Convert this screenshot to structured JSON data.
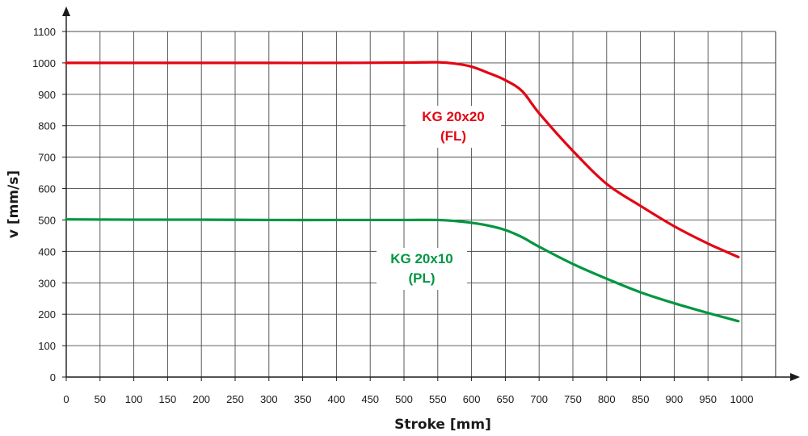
{
  "chart_data": {
    "type": "line",
    "title": "",
    "xlabel": "Stroke [mm]",
    "ylabel": "v [mm/s]",
    "xlim": [
      0,
      1000
    ],
    "ylim": [
      0,
      1100
    ],
    "x_ticks": [
      0,
      50,
      100,
      150,
      200,
      250,
      300,
      350,
      400,
      450,
      500,
      550,
      600,
      650,
      700,
      750,
      800,
      850,
      900,
      950,
      1000
    ],
    "y_ticks": [
      0,
      100,
      200,
      300,
      400,
      500,
      600,
      700,
      800,
      900,
      1000,
      1100
    ],
    "grid": true,
    "series": [
      {
        "name": "KG 20x20 (FL)",
        "label_lines": [
          "KG 20x20",
          "(FL)"
        ],
        "color": "#e30613",
        "x": [
          0,
          100,
          200,
          300,
          400,
          500,
          550,
          575,
          600,
          625,
          650,
          675,
          700,
          750,
          800,
          850,
          900,
          950,
          995
        ],
        "y": [
          1000,
          1000,
          1000,
          1000,
          1000,
          1001,
          1002,
          998,
          988,
          968,
          945,
          910,
          840,
          720,
          615,
          545,
          480,
          425,
          382
        ]
      },
      {
        "name": "KG 20x10 (PL)",
        "label_lines": [
          "KG 20x10",
          "(PL)"
        ],
        "color": "#009640",
        "x": [
          0,
          100,
          200,
          300,
          400,
          500,
          550,
          575,
          600,
          625,
          650,
          675,
          700,
          750,
          800,
          850,
          900,
          950,
          995
        ],
        "y": [
          502,
          501,
          501,
          500,
          500,
          500,
          500,
          497,
          491,
          482,
          468,
          445,
          415,
          360,
          313,
          270,
          235,
          204,
          178
        ]
      }
    ]
  }
}
